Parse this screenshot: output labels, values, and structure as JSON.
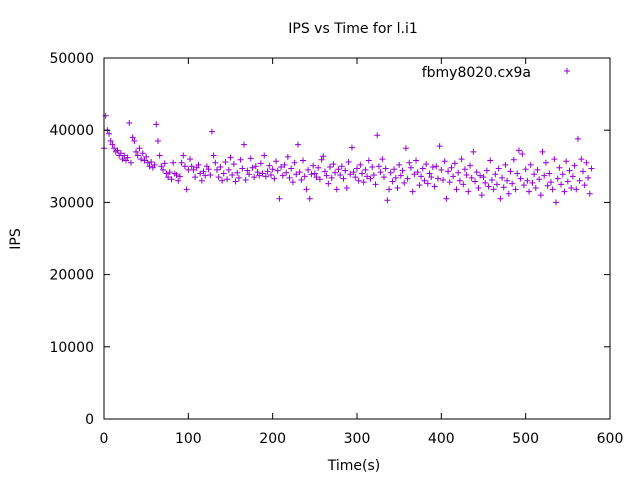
{
  "chart_data": {
    "type": "scatter",
    "title": "IPS vs Time for l.i1",
    "xlabel": "Time(s)",
    "ylabel": "IPS",
    "xlim": [
      0,
      600
    ],
    "ylim": [
      0,
      50000
    ],
    "x_ticks": [
      "0",
      "100",
      "200",
      "300",
      "400",
      "500",
      "600"
    ],
    "y_ticks": [
      "0",
      "10000",
      "20000",
      "30000",
      "40000",
      "50000"
    ],
    "grid": false,
    "legend_position": "top-right",
    "series": [
      {
        "name": "fbmy8020.cx9a",
        "color": "#9400d3",
        "marker": "plus",
        "points": [
          [
            0,
            37500
          ],
          [
            2,
            42000
          ],
          [
            4,
            40000
          ],
          [
            6,
            39500
          ],
          [
            8,
            38500
          ],
          [
            10,
            38000
          ],
          [
            12,
            37500
          ],
          [
            14,
            37000
          ],
          [
            16,
            37200
          ],
          [
            18,
            36500
          ],
          [
            20,
            36800
          ],
          [
            22,
            36000
          ],
          [
            24,
            36500
          ],
          [
            26,
            35800
          ],
          [
            28,
            36200
          ],
          [
            30,
            41000
          ],
          [
            32,
            35500
          ],
          [
            34,
            39000
          ],
          [
            36,
            38500
          ],
          [
            38,
            37000
          ],
          [
            40,
            36500
          ],
          [
            42,
            37500
          ],
          [
            44,
            36000
          ],
          [
            46,
            36800
          ],
          [
            48,
            35800
          ],
          [
            50,
            36300
          ],
          [
            52,
            35500
          ],
          [
            54,
            35000
          ],
          [
            56,
            35600
          ],
          [
            58,
            34800
          ],
          [
            60,
            35200
          ],
          [
            62,
            40800
          ],
          [
            64,
            38500
          ],
          [
            66,
            36500
          ],
          [
            68,
            35000
          ],
          [
            70,
            34500
          ],
          [
            72,
            35400
          ],
          [
            74,
            34000
          ],
          [
            76,
            33500
          ],
          [
            78,
            34200
          ],
          [
            80,
            33200
          ],
          [
            82,
            35500
          ],
          [
            84,
            34000
          ],
          [
            86,
            33800
          ],
          [
            88,
            33000
          ],
          [
            90,
            33600
          ],
          [
            92,
            35500
          ],
          [
            94,
            36500
          ],
          [
            96,
            35000
          ],
          [
            98,
            31800
          ],
          [
            100,
            34500
          ],
          [
            102,
            36000
          ],
          [
            104,
            35000
          ],
          [
            106,
            34500
          ],
          [
            108,
            33500
          ],
          [
            110,
            34800
          ],
          [
            112,
            35200
          ],
          [
            114,
            34000
          ],
          [
            116,
            33000
          ],
          [
            118,
            34300
          ],
          [
            120,
            33700
          ],
          [
            122,
            35000
          ],
          [
            124,
            34600
          ],
          [
            126,
            33800
          ],
          [
            128,
            39800
          ],
          [
            130,
            36500
          ],
          [
            132,
            35500
          ],
          [
            134,
            34500
          ],
          [
            136,
            33500
          ],
          [
            138,
            34900
          ],
          [
            140,
            33000
          ],
          [
            142,
            34000
          ],
          [
            144,
            35600
          ],
          [
            146,
            33200
          ],
          [
            148,
            34500
          ],
          [
            150,
            36200
          ],
          [
            152,
            33800
          ],
          [
            154,
            35300
          ],
          [
            156,
            32900
          ],
          [
            158,
            34100
          ],
          [
            160,
            33400
          ],
          [
            162,
            35900
          ],
          [
            164,
            34700
          ],
          [
            166,
            38000
          ],
          [
            168,
            33100
          ],
          [
            170,
            34400
          ],
          [
            172,
            33900
          ],
          [
            174,
            36100
          ],
          [
            176,
            34800
          ],
          [
            178,
            33500
          ],
          [
            180,
            35000
          ],
          [
            182,
            34200
          ],
          [
            184,
            33700
          ],
          [
            186,
            35400
          ],
          [
            188,
            34000
          ],
          [
            190,
            36500
          ],
          [
            192,
            33600
          ],
          [
            194,
            34300
          ],
          [
            196,
            35100
          ],
          [
            198,
            33800
          ],
          [
            200,
            34600
          ],
          [
            202,
            33300
          ],
          [
            204,
            35700
          ],
          [
            206,
            34400
          ],
          [
            208,
            30500
          ],
          [
            210,
            34900
          ],
          [
            212,
            33700
          ],
          [
            214,
            35200
          ],
          [
            216,
            34100
          ],
          [
            218,
            36300
          ],
          [
            220,
            33400
          ],
          [
            222,
            34700
          ],
          [
            224,
            32800
          ],
          [
            226,
            35500
          ],
          [
            228,
            33900
          ],
          [
            230,
            38000
          ],
          [
            232,
            34200
          ],
          [
            234,
            33100
          ],
          [
            236,
            35800
          ],
          [
            238,
            33600
          ],
          [
            240,
            31800
          ],
          [
            242,
            34500
          ],
          [
            244,
            30500
          ],
          [
            246,
            33900
          ],
          [
            248,
            35100
          ],
          [
            250,
            34000
          ],
          [
            252,
            33500
          ],
          [
            254,
            34800
          ],
          [
            256,
            33200
          ],
          [
            258,
            35900
          ],
          [
            260,
            36400
          ],
          [
            262,
            34300
          ],
          [
            264,
            33700
          ],
          [
            266,
            32600
          ],
          [
            268,
            34900
          ],
          [
            270,
            33400
          ],
          [
            272,
            35300
          ],
          [
            274,
            34100
          ],
          [
            276,
            31800
          ],
          [
            278,
            34600
          ],
          [
            280,
            33800
          ],
          [
            282,
            35000
          ],
          [
            284,
            33300
          ],
          [
            286,
            34400
          ],
          [
            288,
            32000
          ],
          [
            290,
            35600
          ],
          [
            292,
            33900
          ],
          [
            294,
            37600
          ],
          [
            296,
            34200
          ],
          [
            298,
            33500
          ],
          [
            300,
            34700
          ],
          [
            302,
            33000
          ],
          [
            304,
            35200
          ],
          [
            306,
            34000
          ],
          [
            308,
            32800
          ],
          [
            310,
            34500
          ],
          [
            312,
            33600
          ],
          [
            314,
            35800
          ],
          [
            316,
            33300
          ],
          [
            318,
            34900
          ],
          [
            320,
            33800
          ],
          [
            322,
            32500
          ],
          [
            324,
            39300
          ],
          [
            326,
            35000
          ],
          [
            328,
            34200
          ],
          [
            330,
            36000
          ],
          [
            332,
            33500
          ],
          [
            334,
            34700
          ],
          [
            336,
            30300
          ],
          [
            338,
            31800
          ],
          [
            340,
            34100
          ],
          [
            342,
            32900
          ],
          [
            344,
            34600
          ],
          [
            346,
            33400
          ],
          [
            348,
            32000
          ],
          [
            350,
            35200
          ],
          [
            352,
            33700
          ],
          [
            354,
            34400
          ],
          [
            356,
            32700
          ],
          [
            358,
            37500
          ],
          [
            360,
            33300
          ],
          [
            362,
            35500
          ],
          [
            364,
            34800
          ],
          [
            366,
            31500
          ],
          [
            368,
            33900
          ],
          [
            370,
            35800
          ],
          [
            372,
            34200
          ],
          [
            374,
            32400
          ],
          [
            376,
            33600
          ],
          [
            378,
            34700
          ],
          [
            380,
            33000
          ],
          [
            382,
            35300
          ],
          [
            384,
            32600
          ],
          [
            386,
            34000
          ],
          [
            388,
            33500
          ],
          [
            390,
            34900
          ],
          [
            392,
            32200
          ],
          [
            394,
            35000
          ],
          [
            396,
            33300
          ],
          [
            398,
            37800
          ],
          [
            400,
            34500
          ],
          [
            402,
            33100
          ],
          [
            404,
            35700
          ],
          [
            406,
            30500
          ],
          [
            408,
            34300
          ],
          [
            410,
            32800
          ],
          [
            412,
            34800
          ],
          [
            414,
            33600
          ],
          [
            416,
            35400
          ],
          [
            418,
            31800
          ],
          [
            420,
            34100
          ],
          [
            422,
            33000
          ],
          [
            424,
            36000
          ],
          [
            426,
            32500
          ],
          [
            428,
            34600
          ],
          [
            430,
            33800
          ],
          [
            432,
            31500
          ],
          [
            434,
            35100
          ],
          [
            436,
            33400
          ],
          [
            438,
            37000
          ],
          [
            440,
            32900
          ],
          [
            442,
            34200
          ],
          [
            444,
            32000
          ],
          [
            446,
            33700
          ],
          [
            448,
            31000
          ],
          [
            450,
            33500
          ],
          [
            452,
            32700
          ],
          [
            454,
            34400
          ],
          [
            456,
            32200
          ],
          [
            458,
            35800
          ],
          [
            460,
            33100
          ],
          [
            462,
            31800
          ],
          [
            464,
            33900
          ],
          [
            466,
            32500
          ],
          [
            468,
            34700
          ],
          [
            470,
            30500
          ],
          [
            472,
            33400
          ],
          [
            474,
            32100
          ],
          [
            476,
            35200
          ],
          [
            478,
            33000
          ],
          [
            480,
            31200
          ],
          [
            482,
            34300
          ],
          [
            484,
            32600
          ],
          [
            486,
            35900
          ],
          [
            488,
            31800
          ],
          [
            490,
            34000
          ],
          [
            492,
            37200
          ],
          [
            494,
            33300
          ],
          [
            496,
            36700
          ],
          [
            498,
            32400
          ],
          [
            500,
            34600
          ],
          [
            502,
            33000
          ],
          [
            504,
            31500
          ],
          [
            506,
            35200
          ],
          [
            508,
            32700
          ],
          [
            510,
            33900
          ],
          [
            512,
            32000
          ],
          [
            514,
            34500
          ],
          [
            516,
            33200
          ],
          [
            518,
            31000
          ],
          [
            520,
            37000
          ],
          [
            522,
            33700
          ],
          [
            524,
            35500
          ],
          [
            526,
            32300
          ],
          [
            528,
            34000
          ],
          [
            530,
            32800
          ],
          [
            532,
            31800
          ],
          [
            534,
            36000
          ],
          [
            536,
            30000
          ],
          [
            538,
            33300
          ],
          [
            540,
            34800
          ],
          [
            542,
            32500
          ],
          [
            544,
            33900
          ],
          [
            546,
            31500
          ],
          [
            548,
            35700
          ],
          [
            550,
            32900
          ],
          [
            552,
            34400
          ],
          [
            554,
            32000
          ],
          [
            556,
            33600
          ],
          [
            558,
            35100
          ],
          [
            560,
            31800
          ],
          [
            562,
            38800
          ],
          [
            564,
            33000
          ],
          [
            566,
            36000
          ],
          [
            568,
            34300
          ],
          [
            570,
            32400
          ],
          [
            572,
            35500
          ],
          [
            574,
            33400
          ],
          [
            576,
            31200
          ],
          [
            578,
            34700
          ]
        ]
      }
    ]
  }
}
